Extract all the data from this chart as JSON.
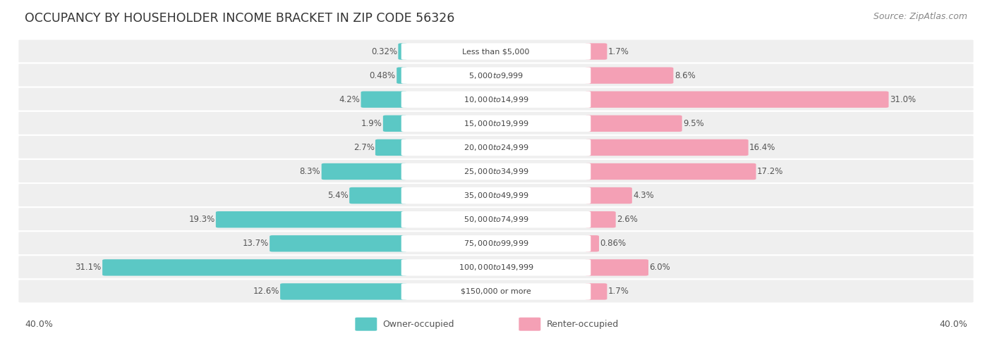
{
  "title": "OCCUPANCY BY HOUSEHOLDER INCOME BRACKET IN ZIP CODE 56326",
  "source": "Source: ZipAtlas.com",
  "categories": [
    "Less than $5,000",
    "$5,000 to $9,999",
    "$10,000 to $14,999",
    "$15,000 to $19,999",
    "$20,000 to $24,999",
    "$25,000 to $34,999",
    "$35,000 to $49,999",
    "$50,000 to $74,999",
    "$75,000 to $99,999",
    "$100,000 to $149,999",
    "$150,000 or more"
  ],
  "owner_values": [
    0.32,
    0.48,
    4.2,
    1.9,
    2.7,
    8.3,
    5.4,
    19.3,
    13.7,
    31.1,
    12.6
  ],
  "renter_values": [
    1.7,
    8.6,
    31.0,
    9.5,
    16.4,
    17.2,
    4.3,
    2.6,
    0.86,
    6.0,
    1.7
  ],
  "owner_color": "#5BC8C5",
  "renter_color": "#F4A0B5",
  "axis_max": 40.0,
  "legend_owner": "Owner-occupied",
  "legend_renter": "Renter-occupied",
  "title_fontsize": 12.5,
  "source_fontsize": 9,
  "label_fontsize": 8.5,
  "category_fontsize": 8.0
}
